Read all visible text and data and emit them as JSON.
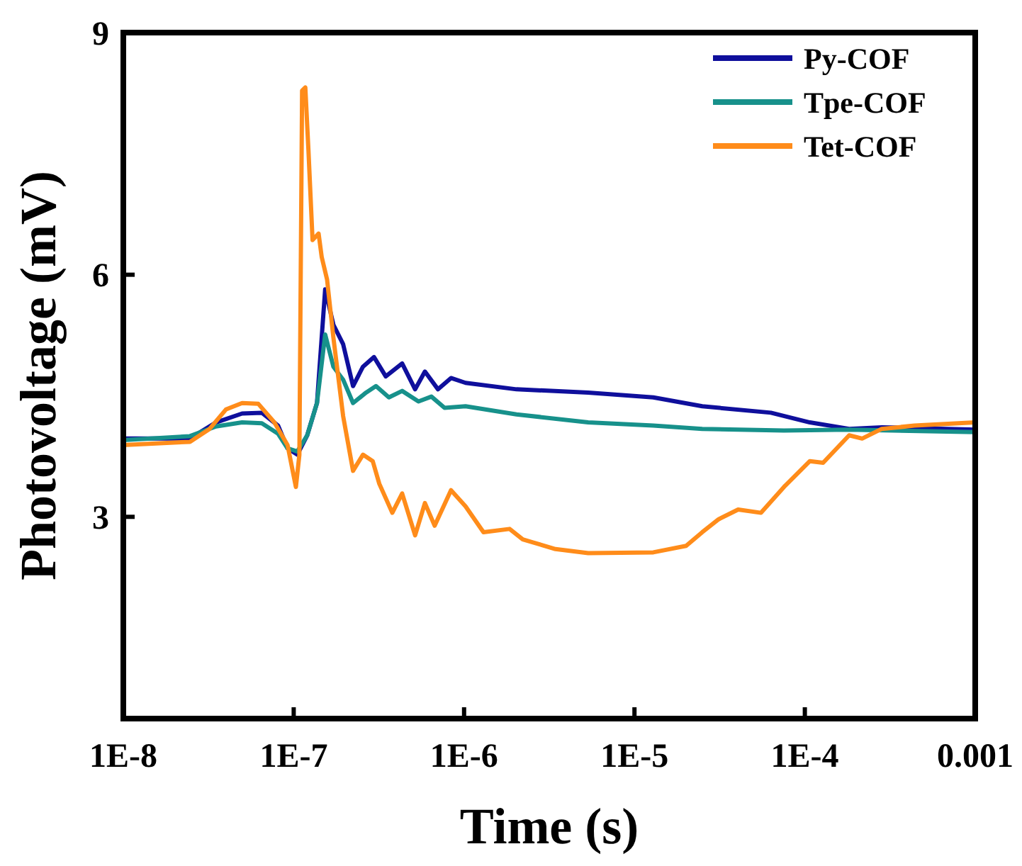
{
  "chart_data": {
    "type": "line",
    "xlabel": "Time (s)",
    "ylabel": "Photovoltage (mV)",
    "log": "x",
    "xlim": [
      1e-08,
      0.001
    ],
    "xticks": [
      {
        "value": 1e-08,
        "label": "1E-8"
      },
      {
        "value": 1e-07,
        "label": "1E-7"
      },
      {
        "value": 1e-06,
        "label": "1E-6"
      },
      {
        "value": 1e-05,
        "label": "1E-5"
      },
      {
        "value": 0.0001,
        "label": "1E-4"
      },
      0.001
    ],
    "ylim": [
      0.5,
      9
    ],
    "yticks": [
      3,
      6,
      9
    ],
    "grid": false,
    "legend": "top right",
    "line_style": "solid",
    "marker": "none",
    "series": [
      {
        "name": "Py-COF",
        "color": "#0f0f9c",
        "x": [
          1e-08,
          2.46e-08,
          3.5e-08,
          4.98e-08,
          6.5e-08,
          8.1e-08,
          9.2e-08,
          1.05e-07,
          1.2e-07,
          1.37e-07,
          1.53e-07,
          1.71e-07,
          1.95e-07,
          2.23e-07,
          2.55e-07,
          2.96e-07,
          3.47e-07,
          4.33e-07,
          5.16e-07,
          5.89e-07,
          7.03e-07,
          8.38e-07,
          1.02e-06,
          2.03e-06,
          5.35e-06,
          1.29e-05,
          2.5e-05,
          6.32e-05,
          0.000107,
          0.000182,
          0.000283,
          0.001
        ],
        "values": [
          3.97,
          3.97,
          4.17,
          4.28,
          4.29,
          4.13,
          3.85,
          3.77,
          4.01,
          4.41,
          5.82,
          5.38,
          5.14,
          4.62,
          4.86,
          4.98,
          4.74,
          4.9,
          4.58,
          4.8,
          4.58,
          4.72,
          4.66,
          4.58,
          4.54,
          4.48,
          4.37,
          4.29,
          4.17,
          4.09,
          4.11,
          4.08
        ]
      },
      {
        "name": "Tpe-COF",
        "color": "#17918b",
        "x": [
          1e-08,
          2.46e-08,
          3.5e-08,
          4.98e-08,
          6.5e-08,
          8.1e-08,
          9.2e-08,
          1.05e-07,
          1.2e-07,
          1.37e-07,
          1.53e-07,
          1.71e-07,
          1.95e-07,
          2.23e-07,
          2.66e-07,
          3.04e-07,
          3.62e-07,
          4.33e-07,
          5.4e-07,
          6.43e-07,
          7.68e-07,
          1.02e-06,
          2.03e-06,
          5.35e-06,
          1.29e-05,
          2.5e-05,
          7.54e-05,
          0.000182,
          0.001
        ],
        "values": [
          3.95,
          4.0,
          4.12,
          4.17,
          4.16,
          4.03,
          3.85,
          3.81,
          4.01,
          4.41,
          5.26,
          4.86,
          4.7,
          4.41,
          4.54,
          4.62,
          4.48,
          4.56,
          4.43,
          4.49,
          4.35,
          4.37,
          4.27,
          4.17,
          4.13,
          4.09,
          4.07,
          4.08,
          4.05
        ]
      },
      {
        "name": "Tet-COF",
        "color": "#ff8c1a",
        "x": [
          1e-08,
          2.46e-08,
          3.21e-08,
          4e-08,
          4.98e-08,
          6.2e-08,
          7.7e-08,
          9.2e-08,
          1.03e-07,
          1.08e-07,
          1.12e-07,
          1.17e-07,
          1.22e-07,
          1.29e-07,
          1.4e-07,
          1.46e-07,
          1.57e-07,
          1.71e-07,
          1.95e-07,
          2.23e-07,
          2.55e-07,
          2.91e-07,
          3.18e-07,
          3.79e-07,
          4.33e-07,
          5.16e-07,
          5.89e-07,
          6.72e-07,
          8.38e-07,
          1.02e-06,
          1.3e-06,
          1.85e-06,
          2.21e-06,
          3.44e-06,
          5.35e-06,
          1.29e-05,
          2.01e-05,
          2.5e-05,
          3.12e-05,
          4.06e-05,
          5.53e-05,
          7.54e-05,
          0.000107,
          0.000128,
          0.000182,
          0.000217,
          0.000283,
          0.00044,
          0.001
        ],
        "values": [
          3.89,
          3.93,
          4.09,
          4.33,
          4.41,
          4.4,
          4.17,
          3.89,
          3.37,
          3.77,
          8.28,
          8.32,
          7.55,
          6.43,
          6.51,
          6.22,
          5.94,
          5.22,
          4.25,
          3.57,
          3.77,
          3.69,
          3.41,
          3.05,
          3.29,
          2.77,
          3.17,
          2.89,
          3.33,
          3.13,
          2.81,
          2.85,
          2.72,
          2.6,
          2.55,
          2.56,
          2.64,
          2.81,
          2.97,
          3.09,
          3.05,
          3.37,
          3.69,
          3.67,
          4.01,
          3.97,
          4.09,
          4.13,
          4.17
        ]
      }
    ]
  }
}
